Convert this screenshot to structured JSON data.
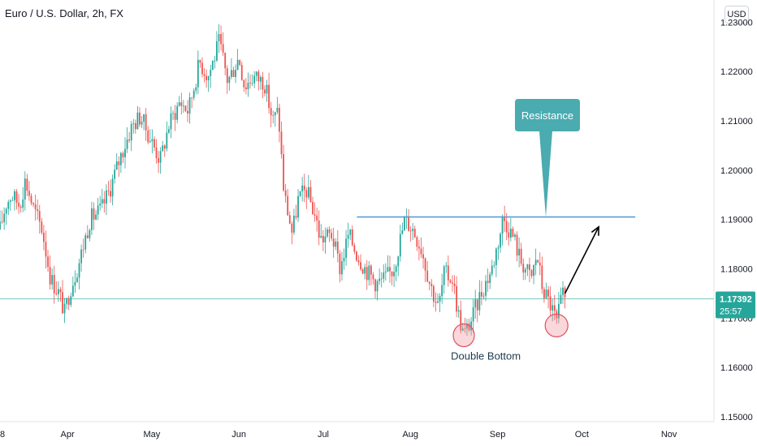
{
  "header": {
    "title": "Euro / U.S. Dollar, 2h, FX",
    "currency": "USD"
  },
  "price_tag": {
    "price": "1.17392",
    "countdown": "25:57",
    "color": "#26a69a"
  },
  "annotations": {
    "resistance_label": "Resistance",
    "double_bottom_label": "Double Bottom",
    "resistance_color": "#4aabb0",
    "line_color": "#5b9bd5",
    "circle_color": "#f28b95"
  },
  "chart_data": {
    "type": "candlestick",
    "symbol": "EURUSD",
    "timeframe": "2h",
    "price_axis": {
      "ticks": [
        1.23,
        1.22,
        1.21,
        1.2,
        1.19,
        1.18,
        1.17,
        1.16,
        1.15
      ],
      "tick_labels": [
        "1.23000",
        "1.22000",
        "1.21000",
        "1.20000",
        "1.19000",
        "1.18000",
        "1.17000",
        "1.16000",
        "1.15000"
      ],
      "range": [
        1.149,
        1.2345
      ]
    },
    "time_axis": {
      "labels": [
        "8",
        "Apr",
        "May",
        "Jun",
        "Jul",
        "Aug",
        "Sep",
        "Oct",
        "Nov"
      ],
      "dates": [
        "2021-03-08",
        "2021-04-01",
        "2021-05-01",
        "2021-06-01",
        "2021-07-01",
        "2021-08-01",
        "2021-09-01",
        "2021-10-01",
        "2021-11-01"
      ],
      "range": [
        "2021-03-08",
        "2021-11-17"
      ]
    },
    "series": [
      {
        "name": "EURUSD",
        "path": [
          [
            "2021-03-08",
            1.188
          ],
          [
            "2021-03-10",
            1.193
          ],
          [
            "2021-03-12",
            1.195
          ],
          [
            "2021-03-15",
            1.193
          ],
          [
            "2021-03-17",
            1.198
          ],
          [
            "2021-03-20",
            1.192
          ],
          [
            "2021-03-23",
            1.188
          ],
          [
            "2021-03-26",
            1.178
          ],
          [
            "2021-03-29",
            1.175
          ],
          [
            "2021-03-31",
            1.171
          ],
          [
            "2021-04-02",
            1.176
          ],
          [
            "2021-04-05",
            1.181
          ],
          [
            "2021-04-09",
            1.19
          ],
          [
            "2021-04-13",
            1.192
          ],
          [
            "2021-04-16",
            1.196
          ],
          [
            "2021-04-20",
            1.203
          ],
          [
            "2021-04-24",
            1.209
          ],
          [
            "2021-04-27",
            1.211
          ],
          [
            "2021-04-30",
            1.207
          ],
          [
            "2021-05-04",
            1.202
          ],
          [
            "2021-05-07",
            1.209
          ],
          [
            "2021-05-11",
            1.214
          ],
          [
            "2021-05-14",
            1.212
          ],
          [
            "2021-05-18",
            1.222
          ],
          [
            "2021-05-21",
            1.219
          ],
          [
            "2021-05-25",
            1.226
          ],
          [
            "2021-05-28",
            1.218
          ],
          [
            "2021-06-01",
            1.223
          ],
          [
            "2021-06-03",
            1.217
          ],
          [
            "2021-06-06",
            1.219
          ],
          [
            "2021-06-10",
            1.218
          ],
          [
            "2021-06-13",
            1.21
          ],
          [
            "2021-06-15",
            1.212
          ],
          [
            "2021-06-17",
            1.1955
          ],
          [
            "2021-06-20",
            1.187
          ],
          [
            "2021-06-22",
            1.194
          ],
          [
            "2021-06-25",
            1.196
          ],
          [
            "2021-06-28",
            1.191
          ],
          [
            "2021-06-30",
            1.186
          ],
          [
            "2021-07-04",
            1.187
          ],
          [
            "2021-07-07",
            1.18
          ],
          [
            "2021-07-10",
            1.187
          ],
          [
            "2021-07-13",
            1.183
          ],
          [
            "2021-07-16",
            1.18
          ],
          [
            "2021-07-20",
            1.177
          ],
          [
            "2021-07-23",
            1.178
          ],
          [
            "2021-07-26",
            1.18
          ],
          [
            "2021-07-30",
            1.19
          ],
          [
            "2021-08-02",
            1.188
          ],
          [
            "2021-08-05",
            1.184
          ],
          [
            "2021-08-08",
            1.177
          ],
          [
            "2021-08-11",
            1.172
          ],
          [
            "2021-08-13",
            1.179
          ],
          [
            "2021-08-16",
            1.178
          ],
          [
            "2021-08-18",
            1.171
          ],
          [
            "2021-08-20",
            1.1665
          ],
          [
            "2021-08-23",
            1.17
          ],
          [
            "2021-08-26",
            1.175
          ],
          [
            "2021-08-30",
            1.18
          ],
          [
            "2021-09-02",
            1.1875
          ],
          [
            "2021-09-03",
            1.1905
          ],
          [
            "2021-09-07",
            1.186
          ],
          [
            "2021-09-09",
            1.182
          ],
          [
            "2021-09-13",
            1.178
          ],
          [
            "2021-09-15",
            1.183
          ],
          [
            "2021-09-17",
            1.176
          ],
          [
            "2021-09-20",
            1.1725
          ],
          [
            "2021-09-22",
            1.169
          ],
          [
            "2021-09-24",
            1.1745
          ],
          [
            "2021-09-25",
            1.1739
          ]
        ]
      }
    ],
    "last_price": 1.17392,
    "resistance_level": 1.1905,
    "resistance_range": [
      "2021-07-13",
      "2021-10-20"
    ],
    "double_bottoms": [
      {
        "date": "2021-08-20",
        "price": 1.1665
      },
      {
        "date": "2021-09-22",
        "price": 1.1685
      }
    ],
    "projection_arrow": {
      "from": [
        "2021-09-25",
        1.175
      ],
      "to": [
        "2021-10-07",
        1.1885
      ]
    },
    "annotations": [
      "Resistance",
      "Double Bottom"
    ],
    "grid": false
  }
}
